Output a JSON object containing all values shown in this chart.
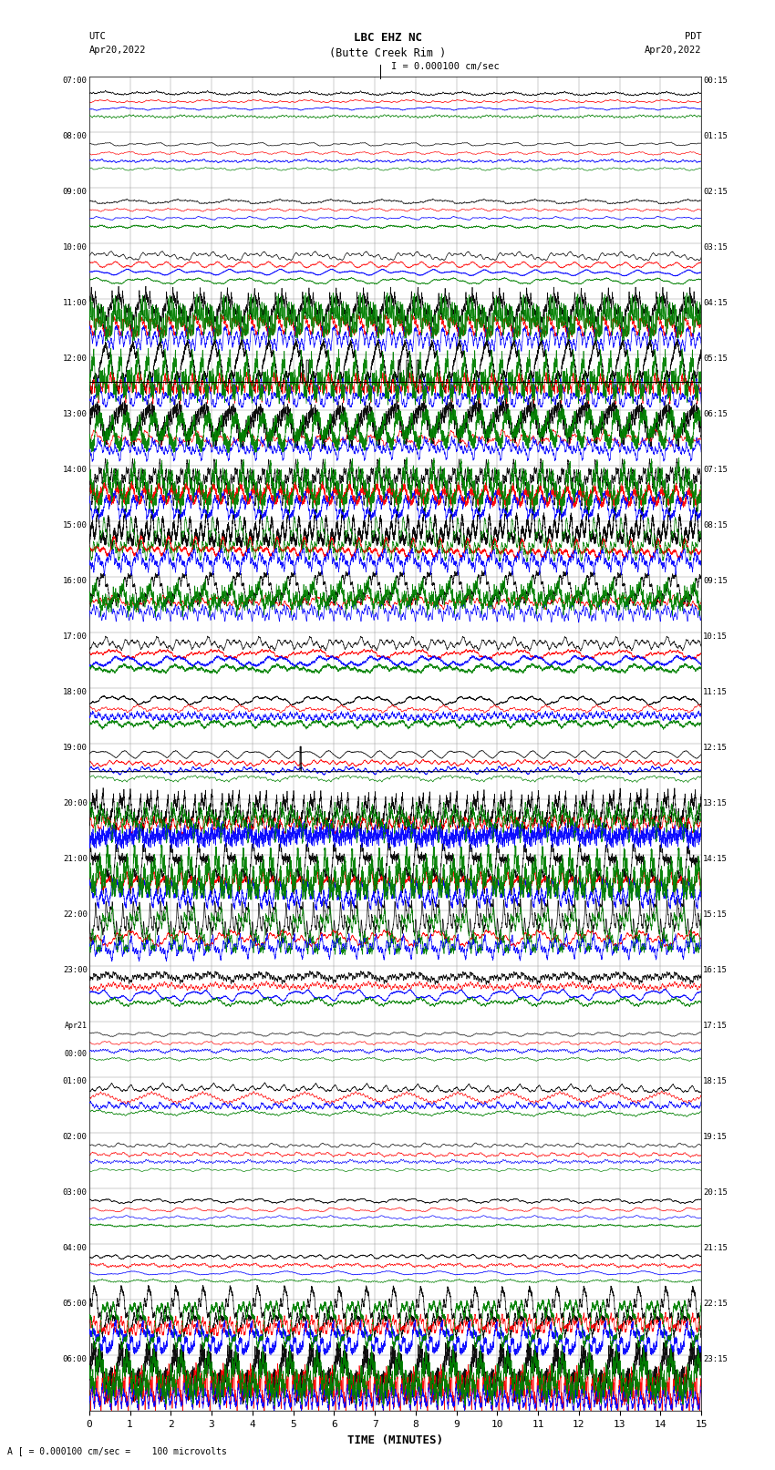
{
  "title_line1": "LBC EHZ NC",
  "title_line2": "(Butte Creek Rim )",
  "title_line3": "I = 0.000100 cm/sec",
  "xlabel": "TIME (MINUTES)",
  "footer": "A [ = 0.000100 cm/sec =    100 microvolts",
  "xlim": [
    0,
    15
  ],
  "xticks": [
    0,
    1,
    2,
    3,
    4,
    5,
    6,
    7,
    8,
    9,
    10,
    11,
    12,
    13,
    14,
    15
  ],
  "utc_labels": [
    "07:00",
    "08:00",
    "09:00",
    "10:00",
    "11:00",
    "12:00",
    "13:00",
    "14:00",
    "15:00",
    "16:00",
    "17:00",
    "18:00",
    "19:00",
    "20:00",
    "21:00",
    "22:00",
    "23:00",
    "Apr21\n00:00",
    "01:00",
    "02:00",
    "03:00",
    "04:00",
    "05:00",
    "06:00"
  ],
  "pdt_labels": [
    "00:15",
    "01:15",
    "02:15",
    "03:15",
    "04:15",
    "05:15",
    "06:15",
    "07:15",
    "08:15",
    "09:15",
    "10:15",
    "11:15",
    "12:15",
    "13:15",
    "14:15",
    "15:15",
    "16:15",
    "17:15",
    "18:15",
    "19:15",
    "20:15",
    "21:15",
    "22:15",
    "23:15"
  ],
  "n_rows": 24,
  "bg_color": "white",
  "grid_color": "#999999",
  "row_configs": [
    {
      "amp_black": 0.04,
      "amp_red": 0.03,
      "amp_blue": 0.03,
      "amp_green": 0.03,
      "base_offsets": [
        0.7,
        0.55,
        0.42,
        0.28
      ]
    },
    {
      "amp_black": 0.03,
      "amp_red": 0.03,
      "amp_blue": 0.03,
      "amp_green": 0.03,
      "base_offsets": [
        0.78,
        0.62,
        0.48,
        0.34
      ]
    },
    {
      "amp_black": 0.04,
      "amp_red": 0.03,
      "amp_blue": 0.03,
      "amp_green": 0.03,
      "base_offsets": [
        0.75,
        0.6,
        0.45,
        0.3
      ]
    },
    {
      "amp_black": 0.08,
      "amp_red": 0.06,
      "amp_blue": 0.06,
      "amp_green": 0.06,
      "base_offsets": [
        0.78,
        0.62,
        0.48,
        0.33
      ]
    },
    {
      "amp_black": 0.42,
      "amp_red": 0.18,
      "amp_blue": 0.22,
      "amp_green": 0.38,
      "base_offsets": [
        0.82,
        0.5,
        0.32,
        0.65
      ]
    },
    {
      "amp_black": 0.48,
      "amp_red": 0.22,
      "amp_blue": 0.3,
      "amp_green": 0.45,
      "base_offsets": [
        0.75,
        0.45,
        0.25,
        0.6
      ]
    },
    {
      "amp_black": 0.4,
      "amp_red": 0.15,
      "amp_blue": 0.2,
      "amp_green": 0.35,
      "base_offsets": [
        0.8,
        0.48,
        0.3,
        0.62
      ]
    },
    {
      "amp_black": 0.45,
      "amp_red": 0.2,
      "amp_blue": 0.25,
      "amp_green": 0.42,
      "base_offsets": [
        0.78,
        0.5,
        0.28,
        0.63
      ]
    },
    {
      "amp_black": 0.38,
      "amp_red": 0.18,
      "amp_blue": 0.22,
      "amp_green": 0.4,
      "base_offsets": [
        0.8,
        0.52,
        0.3,
        0.64
      ]
    },
    {
      "amp_black": 0.3,
      "amp_red": 0.12,
      "amp_blue": 0.18,
      "amp_green": 0.28,
      "base_offsets": [
        0.78,
        0.55,
        0.38,
        0.62
      ]
    },
    {
      "amp_black": 0.12,
      "amp_red": 0.08,
      "amp_blue": 0.1,
      "amp_green": 0.08,
      "base_offsets": [
        0.8,
        0.62,
        0.48,
        0.35
      ]
    },
    {
      "amp_black": 0.1,
      "amp_red": 0.07,
      "amp_blue": 0.08,
      "amp_green": 0.07,
      "base_offsets": [
        0.8,
        0.63,
        0.5,
        0.36
      ]
    },
    {
      "amp_black": 0.08,
      "amp_red": 0.06,
      "amp_blue": 0.07,
      "amp_green": 0.06,
      "base_offsets": [
        0.82,
        0.65,
        0.52,
        0.38
      ]
    },
    {
      "amp_black": 0.35,
      "amp_red": 0.15,
      "amp_blue": 0.2,
      "amp_green": 0.38,
      "base_offsets": [
        0.8,
        0.55,
        0.35,
        0.65
      ]
    },
    {
      "amp_black": 0.42,
      "amp_red": 0.18,
      "amp_blue": 0.25,
      "amp_green": 0.45,
      "base_offsets": [
        0.78,
        0.5,
        0.3,
        0.63
      ]
    },
    {
      "amp_black": 0.38,
      "amp_red": 0.15,
      "amp_blue": 0.22,
      "amp_green": 0.4,
      "base_offsets": [
        0.8,
        0.52,
        0.32,
        0.64
      ]
    },
    {
      "amp_black": 0.1,
      "amp_red": 0.08,
      "amp_blue": 0.1,
      "amp_green": 0.08,
      "base_offsets": [
        0.8,
        0.63,
        0.48,
        0.35
      ]
    },
    {
      "amp_black": 0.04,
      "amp_red": 0.03,
      "amp_blue": 0.04,
      "amp_green": 0.03,
      "base_offsets": [
        0.78,
        0.62,
        0.48,
        0.33
      ]
    },
    {
      "amp_black": 0.08,
      "amp_red": 0.1,
      "amp_blue": 0.07,
      "amp_green": 0.06,
      "base_offsets": [
        0.8,
        0.63,
        0.5,
        0.37
      ]
    },
    {
      "amp_black": 0.04,
      "amp_red": 0.04,
      "amp_blue": 0.04,
      "amp_green": 0.03,
      "base_offsets": [
        0.78,
        0.62,
        0.48,
        0.34
      ]
    },
    {
      "amp_black": 0.04,
      "amp_red": 0.04,
      "amp_blue": 0.04,
      "amp_green": 0.03,
      "base_offsets": [
        0.78,
        0.62,
        0.48,
        0.34
      ]
    },
    {
      "amp_black": 0.04,
      "amp_red": 0.04,
      "amp_blue": 0.04,
      "amp_green": 0.03,
      "base_offsets": [
        0.78,
        0.62,
        0.48,
        0.34
      ]
    },
    {
      "amp_black": 0.45,
      "amp_red": 0.2,
      "amp_blue": 0.28,
      "amp_green": 0.48,
      "base_offsets": [
        0.78,
        0.52,
        0.3,
        0.64
      ]
    },
    {
      "amp_black": 0.5,
      "amp_red": 0.4,
      "amp_blue": 0.22,
      "amp_green": 0.45,
      "base_offsets": [
        0.72,
        0.4,
        0.25,
        0.6
      ]
    }
  ]
}
